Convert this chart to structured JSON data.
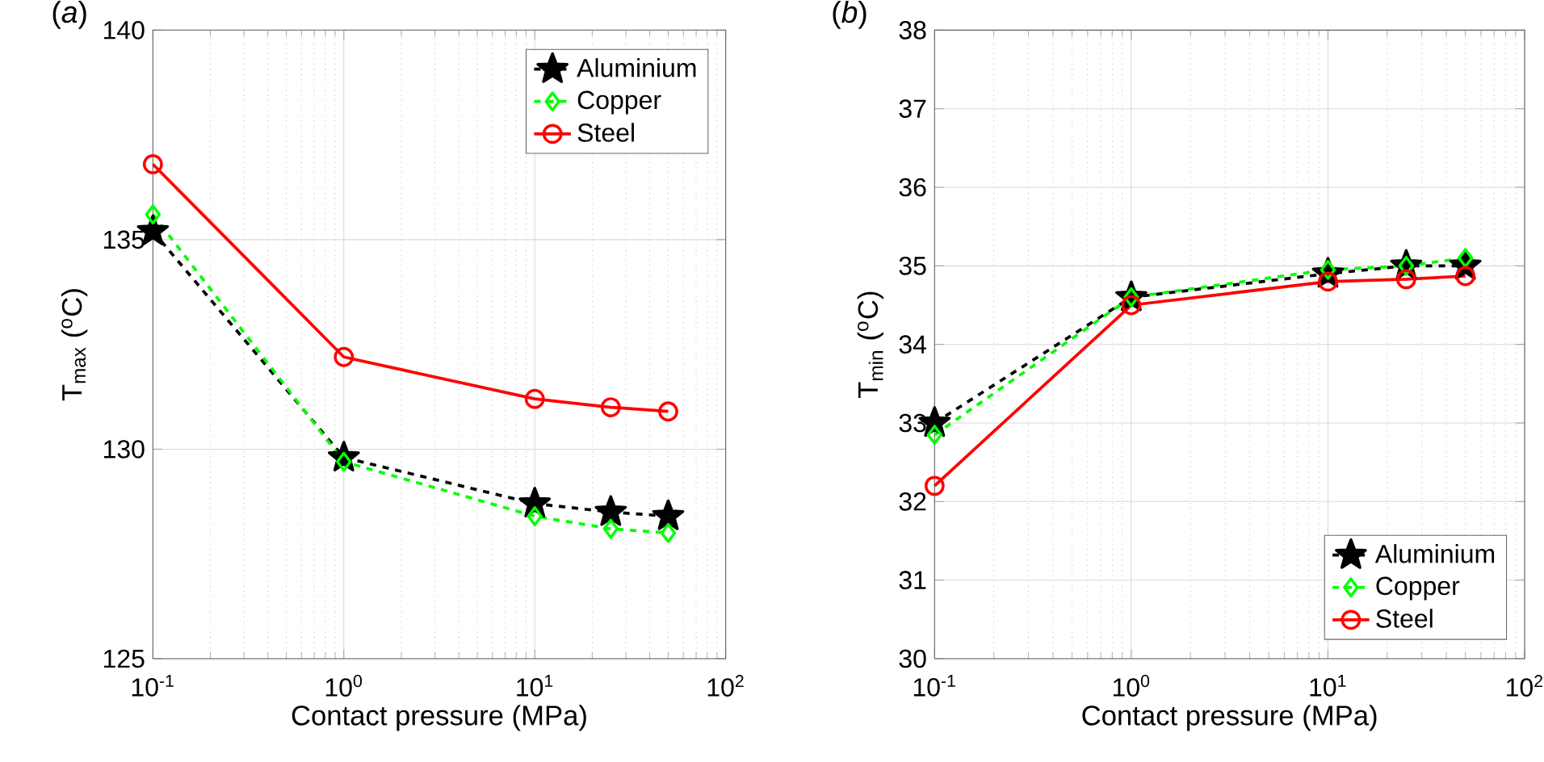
{
  "chart_data": [
    {
      "type": "line",
      "xlabel": "Contact pressure (MPa)",
      "ylabel": "T$_{max}$ ($^{o}$C)",
      "annotations": [
        "(*a*)"
      ],
      "log": "x",
      "grid": true,
      "legend": "top right",
      "x": [
        0.1,
        1,
        10,
        25,
        50
      ],
      "xlim": [
        0.1,
        100
      ],
      "xticks": [
        {
          "value": 0.1,
          "label": "10$^{-1}$"
        },
        {
          "value": 1,
          "label": "10$^{0}$"
        },
        {
          "value": 10,
          "label": "10$^{1}$"
        },
        {
          "value": 100,
          "label": "10$^{2}$"
        }
      ],
      "ylim": [
        125,
        140
      ],
      "yticks": [
        125,
        130,
        135,
        140
      ],
      "series": [
        {
          "name": "Aluminium",
          "color": "#000000",
          "marker": "star",
          "line_style": "dashed",
          "values": [
            135.2,
            129.8,
            128.7,
            128.5,
            128.4
          ]
        },
        {
          "name": "Copper",
          "color": "#00ff00",
          "marker": "diamond",
          "line_style": "dashed",
          "values": [
            135.6,
            129.7,
            128.4,
            128.1,
            128.0
          ]
        },
        {
          "name": "Steel",
          "color": "#ff0000",
          "marker": "circle",
          "line_style": "solid",
          "values": [
            136.8,
            132.2,
            131.2,
            131.0,
            130.9
          ]
        }
      ]
    },
    {
      "type": "line",
      "xlabel": "Contact pressure (MPa)",
      "ylabel": "T$_{min}$ ($^{o}$C)",
      "annotations": [
        "(*b*)"
      ],
      "log": "x",
      "grid": true,
      "legend": "bottom right",
      "x": [
        0.1,
        1,
        10,
        25,
        50
      ],
      "xlim": [
        0.1,
        100
      ],
      "xticks": [
        {
          "value": 0.1,
          "label": "10$^{-1}$"
        },
        {
          "value": 1,
          "label": "10$^{0}$"
        },
        {
          "value": 10,
          "label": "10$^{1}$"
        },
        {
          "value": 100,
          "label": "10$^{2}$"
        }
      ],
      "ylim": [
        30,
        38
      ],
      "yticks": [
        30,
        31,
        32,
        33,
        34,
        35,
        36,
        37,
        38
      ],
      "series": [
        {
          "name": "Aluminium",
          "color": "#000000",
          "marker": "star",
          "line_style": "dashed",
          "values": [
            33.0,
            34.6,
            34.9,
            35.0,
            35.0
          ]
        },
        {
          "name": "Copper",
          "color": "#00ff00",
          "marker": "diamond",
          "line_style": "dashed",
          "values": [
            32.85,
            34.6,
            34.95,
            35.0,
            35.1
          ]
        },
        {
          "name": "Steel",
          "color": "#ff0000",
          "marker": "circle",
          "line_style": "solid",
          "values": [
            32.2,
            34.5,
            34.8,
            34.83,
            34.87
          ]
        }
      ]
    }
  ]
}
